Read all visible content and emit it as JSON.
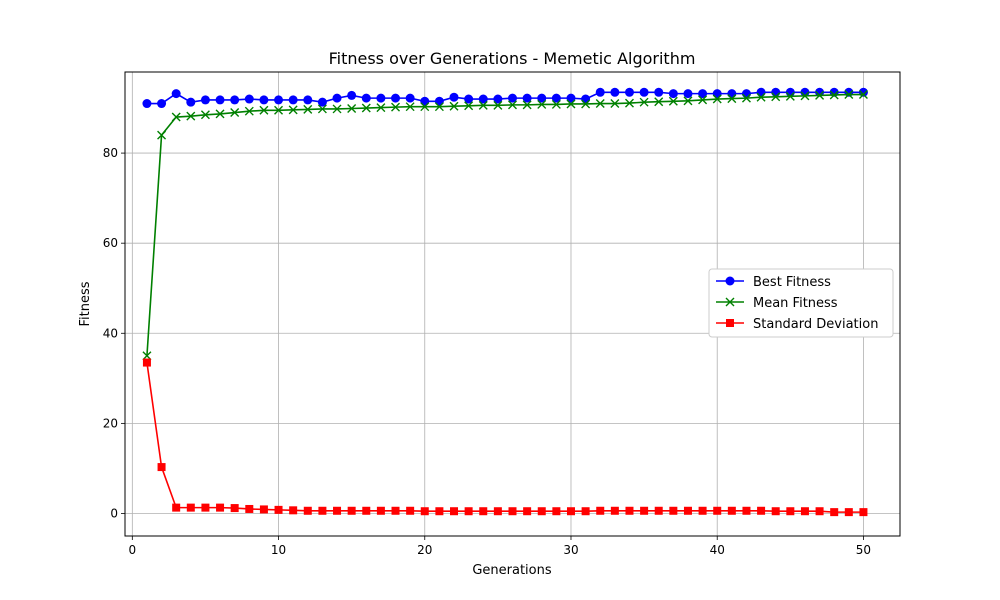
{
  "chart_data": {
    "type": "line",
    "title": "Fitness over Generations - Memetic Algorithm",
    "xlabel": "Generations",
    "ylabel": "Fitness",
    "xlim": [
      -0.5,
      52.5
    ],
    "ylim": [
      -5,
      98
    ],
    "xticks": [
      0,
      10,
      20,
      30,
      40,
      50
    ],
    "yticks": [
      0,
      20,
      40,
      60,
      80
    ],
    "grid": true,
    "legend_position": "center-right",
    "x": [
      1,
      2,
      3,
      4,
      5,
      6,
      7,
      8,
      9,
      10,
      11,
      12,
      13,
      14,
      15,
      16,
      17,
      18,
      19,
      20,
      21,
      22,
      23,
      24,
      25,
      26,
      27,
      28,
      29,
      30,
      31,
      32,
      33,
      34,
      35,
      36,
      37,
      38,
      39,
      40,
      41,
      42,
      43,
      44,
      45,
      46,
      47,
      48,
      49,
      50
    ],
    "series": [
      {
        "name": "Best Fitness",
        "color": "#0000ff",
        "marker": "circle",
        "values": [
          91.0,
          91.0,
          93.2,
          91.3,
          91.8,
          91.8,
          91.8,
          92.0,
          91.8,
          91.8,
          91.8,
          91.8,
          91.3,
          92.2,
          92.8,
          92.2,
          92.2,
          92.2,
          92.2,
          91.5,
          91.5,
          92.4,
          92.0,
          92.0,
          92.0,
          92.2,
          92.2,
          92.2,
          92.2,
          92.2,
          92.0,
          93.5,
          93.5,
          93.5,
          93.5,
          93.5,
          93.2,
          93.2,
          93.2,
          93.2,
          93.2,
          93.2,
          93.5,
          93.5,
          93.5,
          93.5,
          93.5,
          93.5,
          93.5,
          93.5
        ]
      },
      {
        "name": "Mean Fitness",
        "color": "#008000",
        "marker": "x",
        "values": [
          35.0,
          84.0,
          88.0,
          88.2,
          88.5,
          88.7,
          89.0,
          89.3,
          89.5,
          89.5,
          89.6,
          89.7,
          89.8,
          89.8,
          89.9,
          90.0,
          90.1,
          90.2,
          90.3,
          90.3,
          90.3,
          90.4,
          90.5,
          90.6,
          90.6,
          90.7,
          90.7,
          90.8,
          90.8,
          90.9,
          90.9,
          91.0,
          91.0,
          91.1,
          91.3,
          91.4,
          91.5,
          91.6,
          91.8,
          92.0,
          92.1,
          92.2,
          92.4,
          92.5,
          92.6,
          92.7,
          92.8,
          92.9,
          93.0,
          93.0
        ]
      },
      {
        "name": "Standard Deviation",
        "color": "#ff0000",
        "marker": "square",
        "values": [
          33.5,
          10.3,
          1.3,
          1.3,
          1.3,
          1.3,
          1.2,
          1.0,
          0.9,
          0.8,
          0.7,
          0.6,
          0.6,
          0.6,
          0.6,
          0.6,
          0.6,
          0.6,
          0.6,
          0.5,
          0.5,
          0.5,
          0.5,
          0.5,
          0.5,
          0.5,
          0.5,
          0.5,
          0.5,
          0.5,
          0.5,
          0.6,
          0.6,
          0.6,
          0.6,
          0.6,
          0.6,
          0.6,
          0.6,
          0.6,
          0.6,
          0.6,
          0.6,
          0.5,
          0.5,
          0.5,
          0.5,
          0.3,
          0.3,
          0.3
        ]
      }
    ]
  }
}
